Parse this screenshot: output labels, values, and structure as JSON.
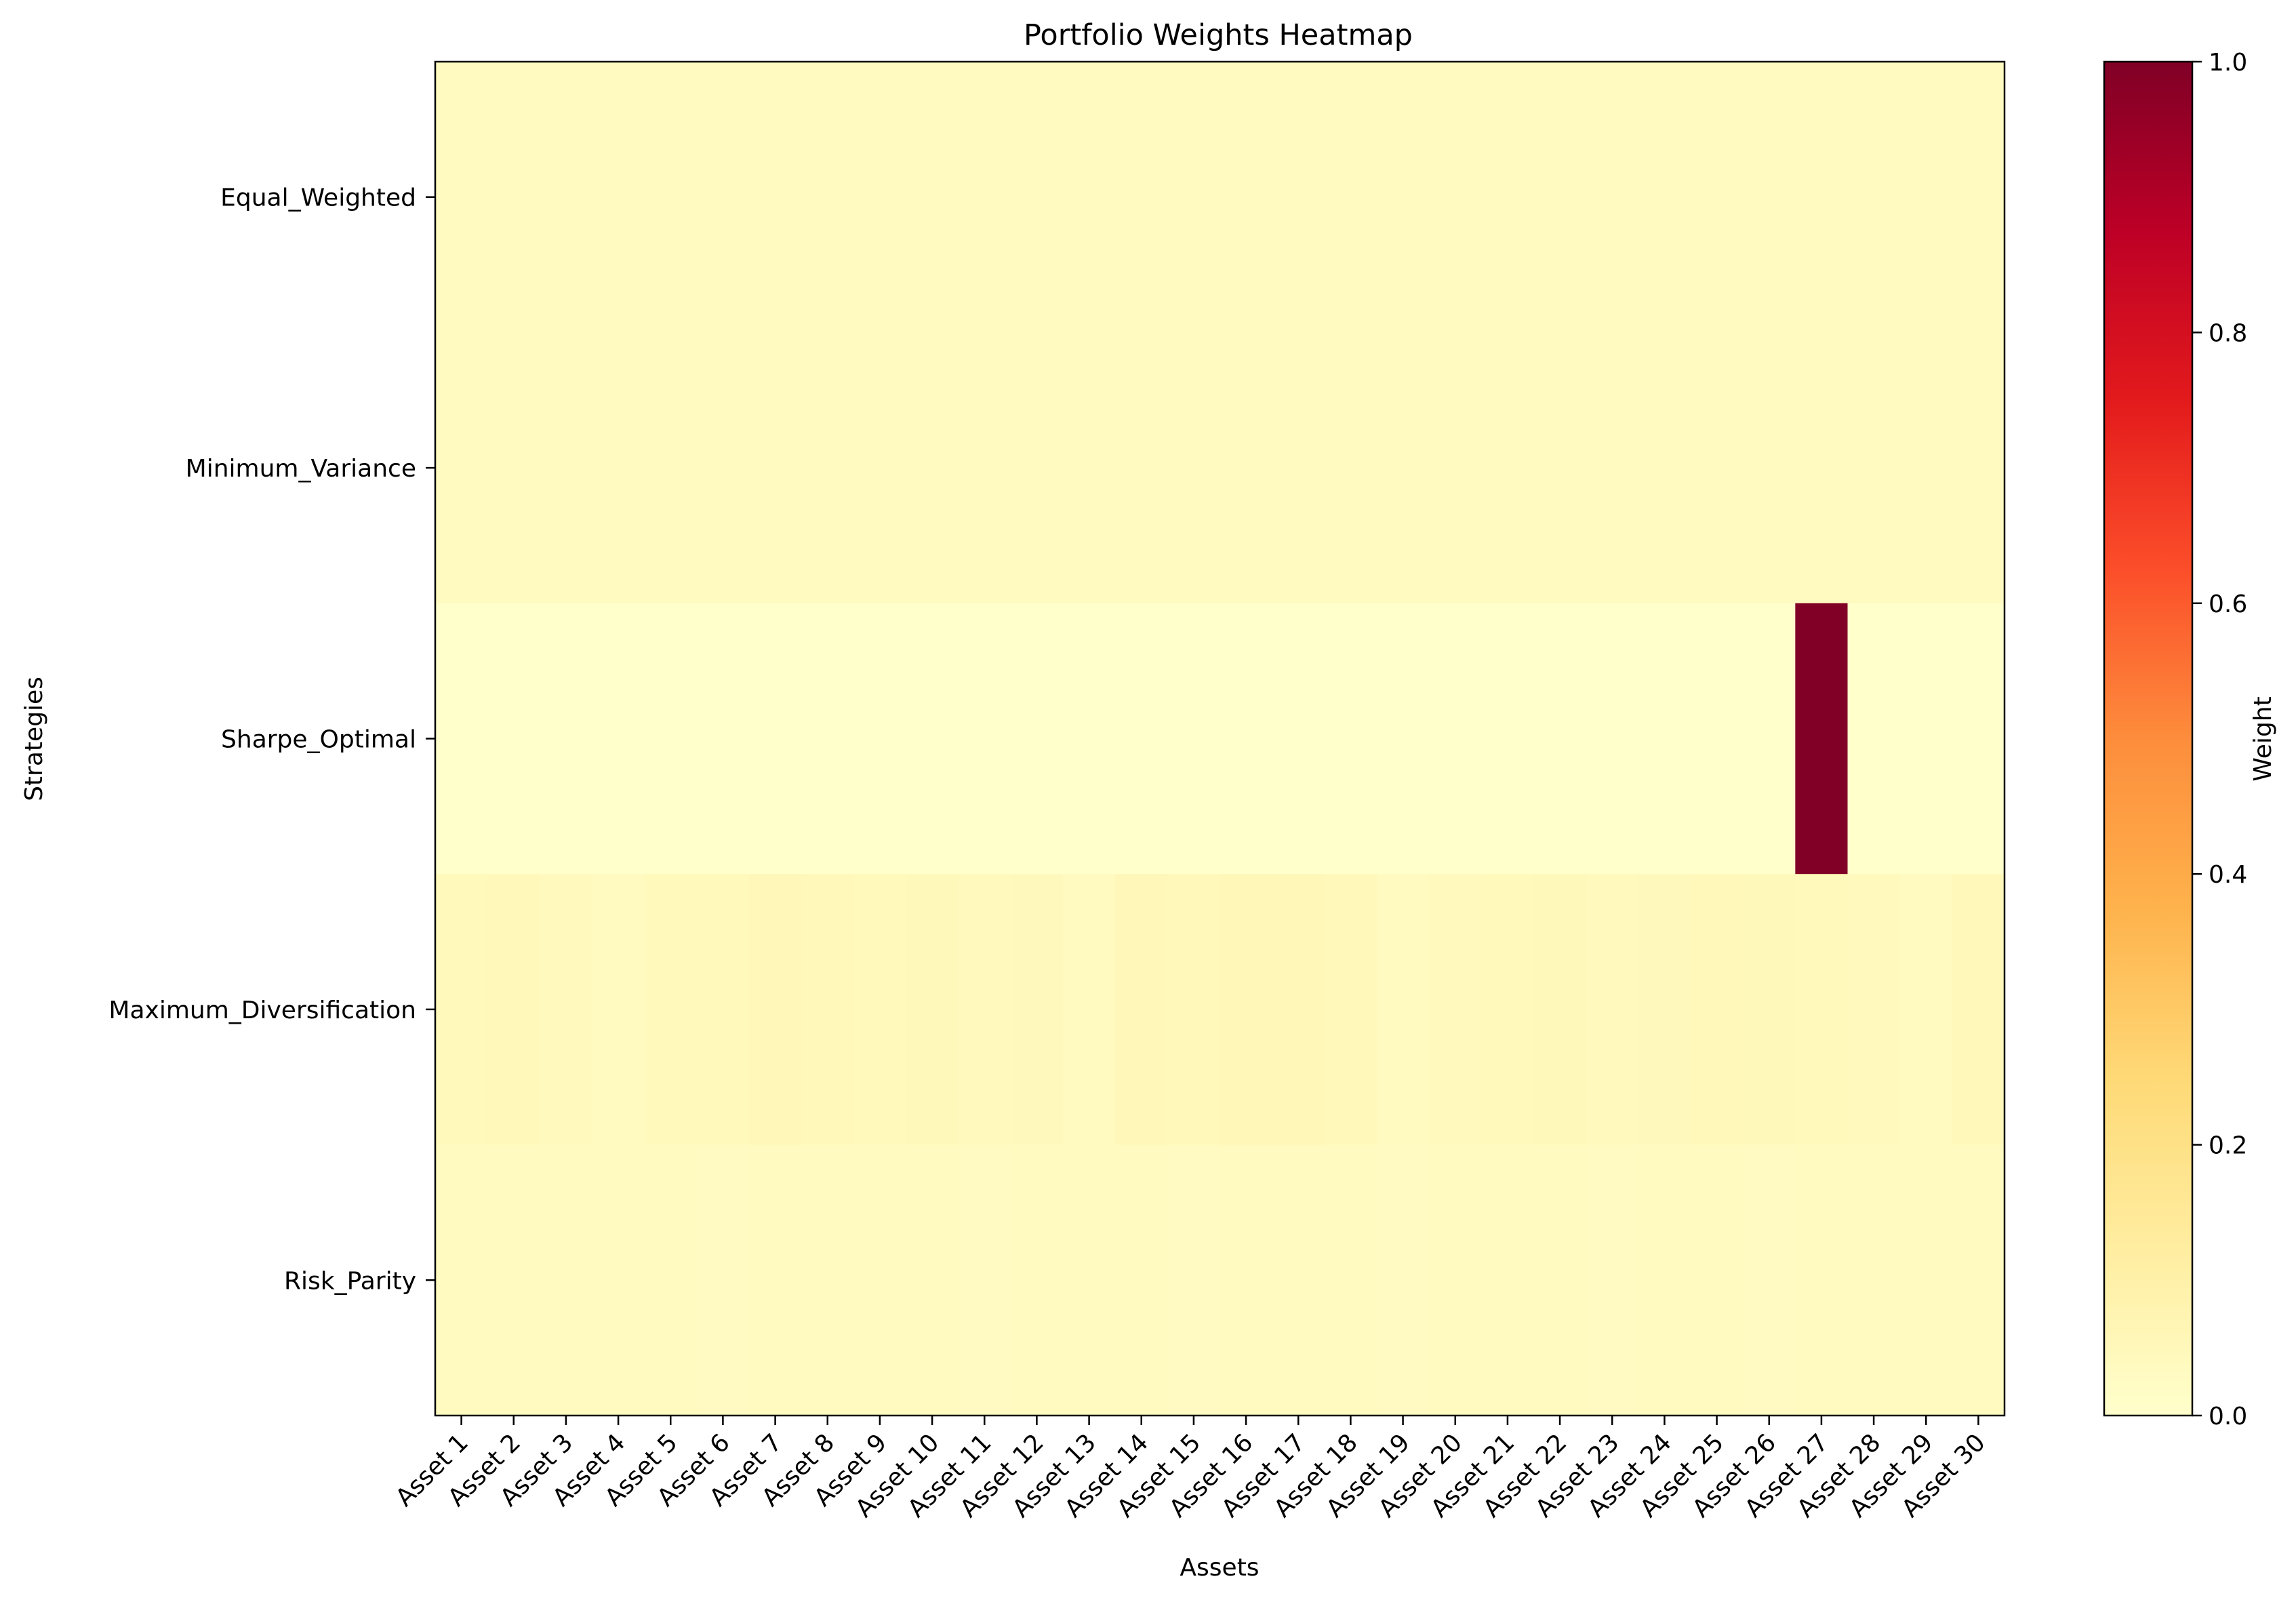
{
  "chart_data": {
    "type": "heatmap",
    "title": "Portfolio Weights Heatmap",
    "xlabel": "Assets",
    "ylabel": "Strategies",
    "colorbar_label": "Weight",
    "colormap": "YlOrRd",
    "vmin": 0.0,
    "vmax": 1.0,
    "colorbar_ticks": [
      "0.0",
      "0.2",
      "0.4",
      "0.6",
      "0.8",
      "1.0"
    ],
    "colorbar_tick_values": [
      0.0,
      0.2,
      0.4,
      0.6,
      0.8,
      1.0
    ],
    "grid": false,
    "x_categories": [
      "Asset 1",
      "Asset 2",
      "Asset 3",
      "Asset 4",
      "Asset 5",
      "Asset 6",
      "Asset 7",
      "Asset 8",
      "Asset 9",
      "Asset 10",
      "Asset 11",
      "Asset 12",
      "Asset 13",
      "Asset 14",
      "Asset 15",
      "Asset 16",
      "Asset 17",
      "Asset 18",
      "Asset 19",
      "Asset 20",
      "Asset 21",
      "Asset 22",
      "Asset 23",
      "Asset 24",
      "Asset 25",
      "Asset 26",
      "Asset 27",
      "Asset 28",
      "Asset 29",
      "Asset 30"
    ],
    "y_categories": [
      "Equal_Weighted",
      "Minimum_Variance",
      "Sharpe_Optimal",
      "Maximum_Diversification",
      "Risk_Parity"
    ],
    "values": [
      [
        0.033,
        0.033,
        0.033,
        0.033,
        0.033,
        0.033,
        0.033,
        0.033,
        0.033,
        0.033,
        0.033,
        0.033,
        0.033,
        0.033,
        0.033,
        0.033,
        0.033,
        0.033,
        0.033,
        0.033,
        0.033,
        0.033,
        0.033,
        0.033,
        0.033,
        0.033,
        0.033,
        0.033,
        0.033,
        0.033
      ],
      [
        0.035,
        0.034,
        0.036,
        0.033,
        0.035,
        0.034,
        0.033,
        0.036,
        0.034,
        0.035,
        0.033,
        0.034,
        0.035,
        0.036,
        0.034,
        0.033,
        0.035,
        0.034,
        0.036,
        0.033,
        0.034,
        0.035,
        0.033,
        0.036,
        0.034,
        0.035,
        0.033,
        0.034,
        0.035,
        0.036
      ],
      [
        0.0,
        0.0,
        0.0,
        0.0,
        0.0,
        0.0,
        0.0,
        0.0,
        0.0,
        0.0,
        0.0,
        0.0,
        0.0,
        0.0,
        0.0,
        0.0,
        0.0,
        0.0,
        0.0,
        0.0,
        0.0,
        0.0,
        0.0,
        0.0,
        0.0,
        0.0,
        1.0,
        0.0,
        0.0,
        0.0
      ],
      [
        0.045,
        0.05,
        0.04,
        0.035,
        0.045,
        0.045,
        0.055,
        0.05,
        0.045,
        0.048,
        0.042,
        0.046,
        0.038,
        0.055,
        0.052,
        0.058,
        0.056,
        0.05,
        0.035,
        0.04,
        0.045,
        0.048,
        0.044,
        0.046,
        0.05,
        0.047,
        0.045,
        0.042,
        0.038,
        0.05
      ],
      [
        0.034,
        0.033,
        0.035,
        0.033,
        0.034,
        0.032,
        0.033,
        0.034,
        0.033,
        0.035,
        0.032,
        0.033,
        0.034,
        0.033,
        0.032,
        0.034,
        0.035,
        0.033,
        0.032,
        0.033,
        0.034,
        0.033,
        0.032,
        0.034,
        0.033,
        0.032,
        0.033,
        0.034,
        0.035,
        0.033
      ]
    ]
  }
}
